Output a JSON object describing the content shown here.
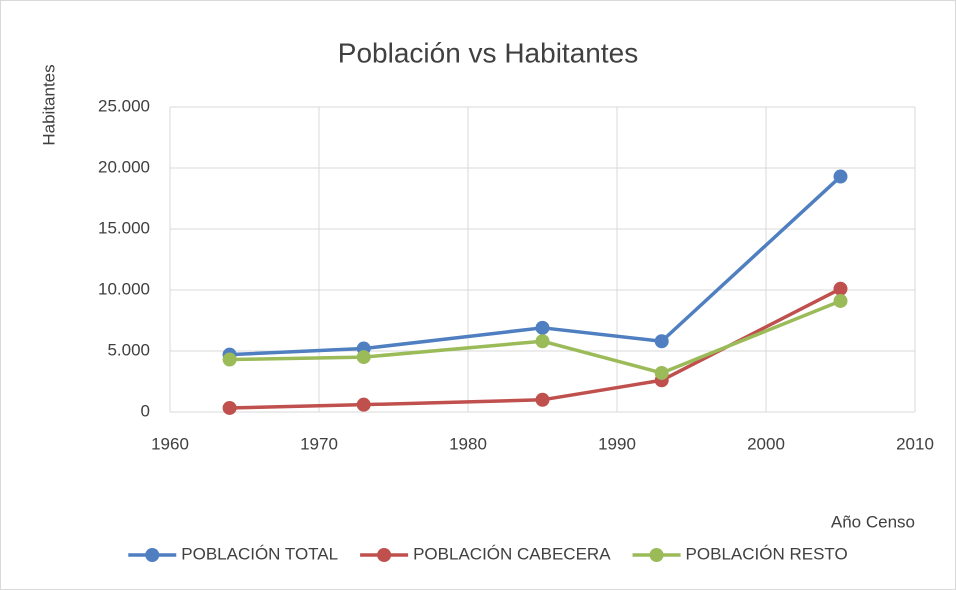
{
  "chart_data": {
    "type": "line",
    "title": "Población vs Habitantes",
    "x_label": "Año Censo",
    "y_label": "Habitantes",
    "x": [
      1964,
      1973,
      1985,
      1993,
      2005
    ],
    "series": [
      {
        "name": "POBLACIÓN TOTAL",
        "color": "#4f7fc0",
        "values": [
          4700,
          5200,
          6900,
          5800,
          19300
        ]
      },
      {
        "name": "POBLACIÓN CABECERA",
        "color": "#c0504d",
        "values": [
          330,
          600,
          1000,
          2600,
          10100
        ]
      },
      {
        "name": "POBLACIÓN RESTO",
        "color": "#9bbb59",
        "values": [
          4300,
          4500,
          5800,
          3200,
          9100
        ]
      }
    ],
    "xlim": [
      1960,
      2010
    ],
    "xticks": [
      1960,
      1970,
      1980,
      1990,
      2000,
      2010
    ],
    "ylim": [
      0,
      25000
    ],
    "yticks": [
      0,
      {
        "value": 5000,
        "label": "5.000"
      },
      {
        "value": 10000,
        "label": "10.000"
      },
      {
        "value": 15000,
        "label": "15.000"
      },
      {
        "value": 20000,
        "label": "20.000"
      },
      {
        "value": 25000,
        "label": "25.000"
      }
    ],
    "grid": true,
    "legend": "bottom"
  }
}
